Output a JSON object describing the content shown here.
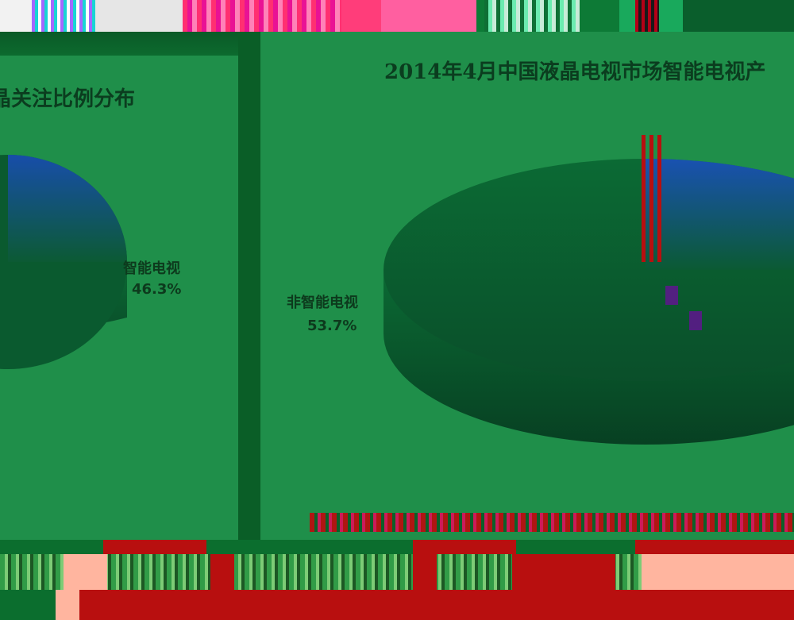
{
  "chart_data": [
    {
      "type": "pie",
      "title": "晶关注比例分布",
      "series": [
        {
          "label": "智能电视",
          "value": 46.3,
          "value_label": "46.3%",
          "color": "#1b4fb2"
        },
        {
          "label": "",
          "value": 53.7,
          "value_label": "",
          "color": "#0a5a2f"
        }
      ]
    },
    {
      "type": "pie",
      "title": "2014年4月中国液晶电视市场智能电视产",
      "series": [
        {
          "label": "非智能电视",
          "value": 53.7,
          "value_label": "53.7%",
          "color": "#0a5a2f"
        },
        {
          "label": "",
          "value": 46.3,
          "value_label": "",
          "color": "#1b4fb2"
        }
      ]
    }
  ]
}
